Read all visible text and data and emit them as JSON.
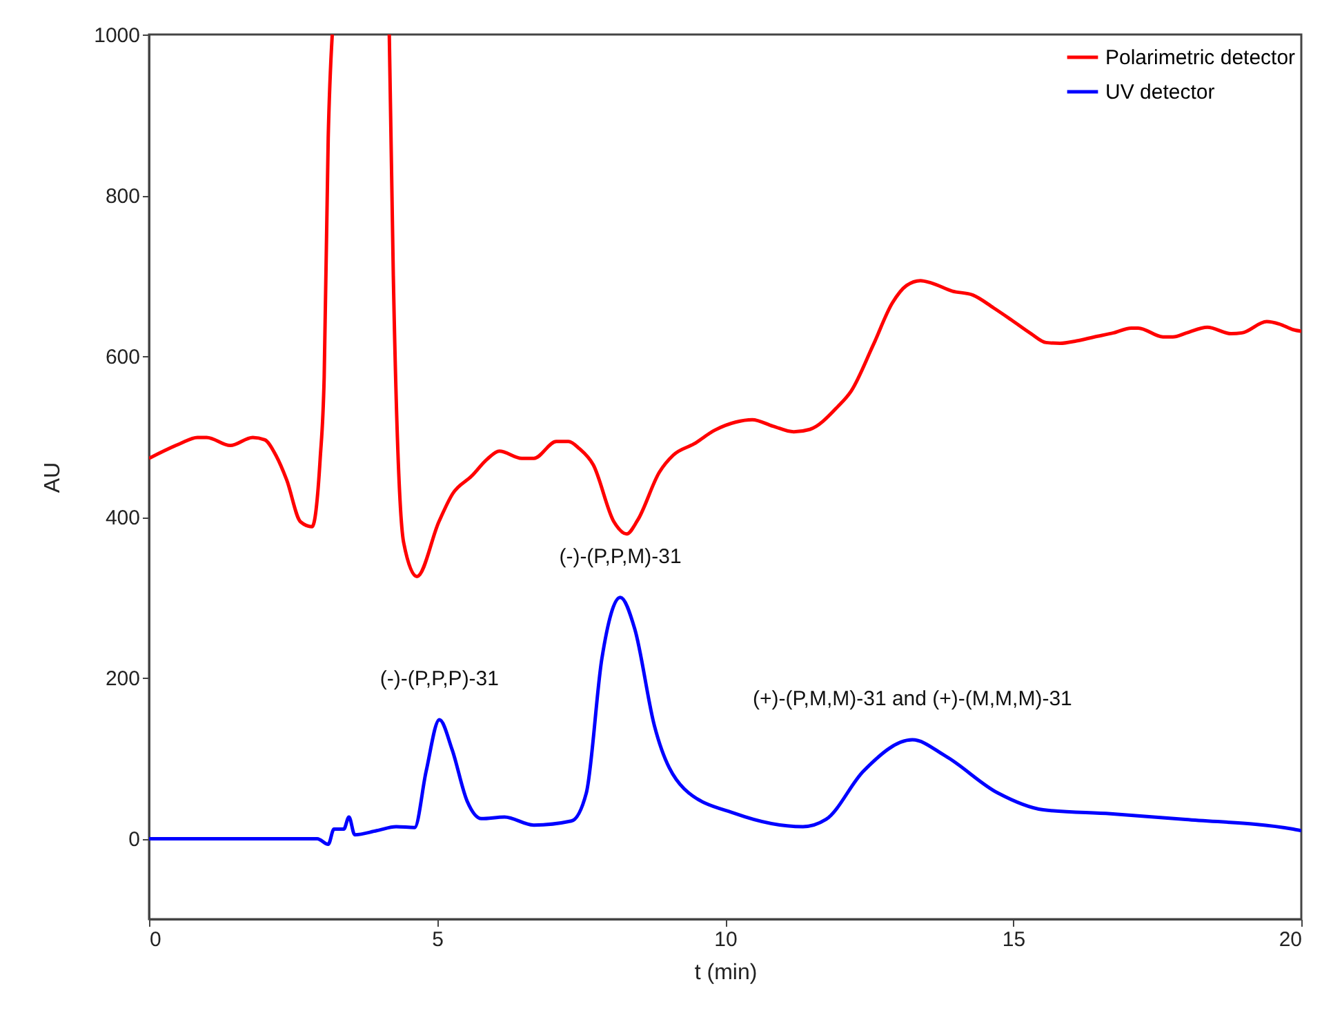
{
  "chart_data": {
    "type": "line",
    "xlabel": "t (min)",
    "ylabel": "AU",
    "xlim": [
      0,
      20
    ],
    "xticks": [
      0,
      5,
      10,
      15,
      20
    ],
    "ylim": [
      -100,
      1000
    ],
    "yticks": [
      0,
      200,
      400,
      600,
      800,
      1000
    ],
    "legend": "top right",
    "grid": false,
    "series": [
      {
        "name": "Polarimetric detector",
        "color": "#ff0000",
        "x": [
          0,
          0.53,
          0.84,
          1.0,
          1.41,
          1.8,
          2.01,
          2.2,
          2.39,
          2.63,
          2.83,
          2.97,
          3.04,
          3.11,
          3.18,
          3.7,
          4.17,
          4.24,
          4.42,
          4.65,
          5.03,
          5.27,
          5.6,
          5.87,
          6.08,
          6.47,
          6.68,
          7.07,
          7.28,
          7.47,
          7.71,
          8.07,
          8.29,
          8.48,
          8.86,
          9.1,
          9.46,
          9.82,
          10.18,
          10.47,
          10.83,
          11.19,
          11.47,
          11.95,
          12.19,
          12.57,
          12.9,
          13.15,
          13.39,
          13.58,
          13.94,
          14.3,
          14.66,
          14.97,
          15.31,
          15.57,
          15.81,
          16.1,
          16.41,
          16.74,
          17.05,
          17.17,
          17.6,
          17.77,
          18.01,
          18.37,
          18.78,
          18.97,
          19.4,
          19.62,
          19.86,
          20
        ],
        "values": [
          473,
          491,
          499,
          499,
          489,
          499,
          496,
          477,
          446,
          394,
          388,
          472,
          574,
          871,
          1000,
          null,
          1000,
          700,
          368,
          326,
          394,
          429,
          451,
          472,
          482,
          473,
          473,
          494,
          494,
          485,
          465,
          394,
          379,
          396,
          456,
          477,
          491,
          508,
          518,
          521,
          513,
          506,
          509,
          537,
          557,
          614,
          666,
          688,
          694,
          691,
          681,
          676,
          660,
          645,
          628,
          617,
          616,
          619,
          624,
          629,
          635,
          635,
          624,
          624,
          629,
          636,
          628,
          629,
          643,
          640,
          633,
          631
        ]
      },
      {
        "name": "UV detector",
        "color": "#0000ff",
        "x": [
          0,
          2.92,
          3.11,
          3.21,
          3.38,
          3.47,
          3.57,
          3.95,
          4.29,
          4.61,
          4.81,
          5.04,
          5.26,
          5.52,
          5.77,
          6.17,
          6.68,
          7.33,
          7.59,
          7.86,
          8.18,
          8.43,
          8.77,
          9.29,
          10.19,
          11.35,
          11.75,
          12.4,
          13.25,
          13.82,
          14.73,
          15.52,
          16.69,
          17.99,
          19.86,
          20
        ],
        "values": [
          0,
          0,
          -7,
          12,
          12,
          27,
          5,
          10,
          15,
          14,
          84,
          148,
          111,
          47,
          25,
          27,
          17,
          22,
          57,
          224,
          300,
          261,
          141,
          62,
          31,
          15,
          24,
          84,
          123,
          103,
          57,
          36,
          31,
          24,
          12,
          10
        ]
      }
    ],
    "annotations": [
      {
        "text": "(-)-(P,P,P)-31",
        "x": 5.04,
        "y": 148
      },
      {
        "text": "(-)-(P,P,M)-31",
        "x": 8.18,
        "y": 300
      },
      {
        "text": "(+)-(P,M,M)-31 and (+)-(M,M,M)-31",
        "x": 13.25,
        "y": 123
      }
    ]
  }
}
